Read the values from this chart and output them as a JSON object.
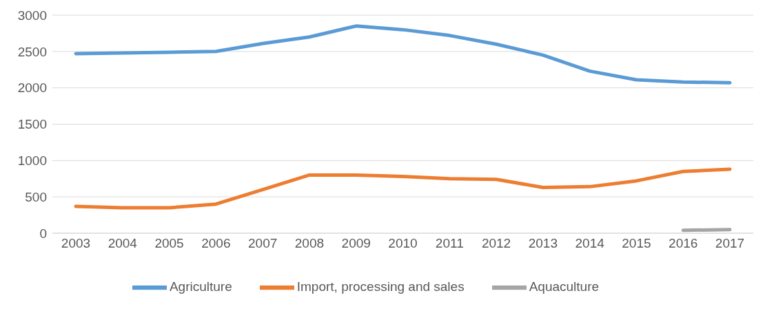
{
  "chart_data": {
    "type": "line",
    "categories": [
      "2003",
      "2004",
      "2005",
      "2006",
      "2007",
      "2008",
      "2009",
      "2010",
      "2011",
      "2012",
      "2013",
      "2014",
      "2015",
      "2016",
      "2017"
    ],
    "series": [
      {
        "name": "Agriculture",
        "color": "#5b9bd5",
        "values": [
          2470,
          2480,
          2490,
          2500,
          2610,
          2700,
          2850,
          2800,
          2720,
          2600,
          2450,
          2230,
          2110,
          2080,
          2070
        ]
      },
      {
        "name": "Import, processing and sales",
        "color": "#ed7d31",
        "values": [
          370,
          350,
          350,
          400,
          600,
          800,
          800,
          780,
          750,
          740,
          630,
          640,
          720,
          850,
          880
        ]
      },
      {
        "name": "Aquaculture",
        "color": "#a5a5a5",
        "values": [
          null,
          null,
          null,
          null,
          null,
          null,
          null,
          null,
          null,
          null,
          null,
          null,
          null,
          40,
          50
        ]
      }
    ],
    "ylim": [
      0,
      3000
    ],
    "yticks": [
      0,
      500,
      1000,
      1500,
      2000,
      2500,
      3000
    ],
    "grid": "y",
    "legend": "bottom",
    "marker": "none",
    "line_style": "solid"
  }
}
